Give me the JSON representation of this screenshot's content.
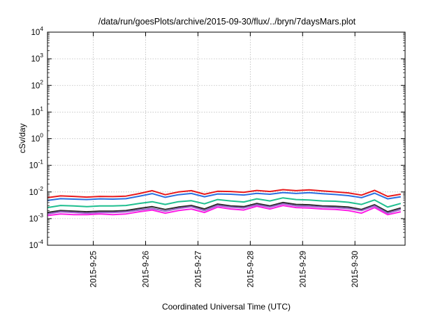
{
  "chart_data": {
    "type": "line",
    "title": "/data/run/goesPlots/archive/2015-09-30/flux/../bryn/7daysMars.plot",
    "xlabel": "Coordinated Universal Time (UTC)",
    "ylabel": "cSv/day",
    "y_scale": "log",
    "ylim": [
      0.0001,
      10000
    ],
    "y_ticks": [
      {
        "base": "10",
        "exp": "-4"
      },
      {
        "base": "10",
        "exp": "-3"
      },
      {
        "base": "10",
        "exp": "-2"
      },
      {
        "base": "10",
        "exp": "-1"
      },
      {
        "base": "10",
        "exp": "0"
      },
      {
        "base": "10",
        "exp": "1"
      },
      {
        "base": "10",
        "exp": "2"
      },
      {
        "base": "10",
        "exp": "3"
      },
      {
        "base": "10",
        "exp": "4"
      }
    ],
    "xlim": [
      "2015-09-24 03:00",
      "2015-09-30 23:00"
    ],
    "x_ticks": [
      "2015-9-25",
      "2015-9-26",
      "2015-9-27",
      "2015-9-28",
      "2015-9-29",
      "2015-9-30"
    ],
    "grid": true,
    "legend": "none",
    "x": [
      "2015-09-24 03:00",
      "2015-09-24 09:00",
      "2015-09-24 15:00",
      "2015-09-24 21:00",
      "2015-09-25 03:00",
      "2015-09-25 09:00",
      "2015-09-25 15:00",
      "2015-09-25 21:00",
      "2015-09-26 03:00",
      "2015-09-26 09:00",
      "2015-09-26 15:00",
      "2015-09-26 21:00",
      "2015-09-27 03:00",
      "2015-09-27 09:00",
      "2015-09-27 15:00",
      "2015-09-27 21:00",
      "2015-09-28 03:00",
      "2015-09-28 09:00",
      "2015-09-28 15:00",
      "2015-09-28 21:00",
      "2015-09-29 03:00",
      "2015-09-29 09:00",
      "2015-09-29 15:00",
      "2015-09-29 21:00",
      "2015-09-30 03:00",
      "2015-09-30 09:00",
      "2015-09-30 15:00",
      "2015-09-30 21:00"
    ],
    "series": [
      {
        "color": "#e8191c",
        "values": [
          0.0061,
          0.0071,
          0.0068,
          0.0064,
          0.0068,
          0.0067,
          0.007,
          0.0087,
          0.0112,
          0.0079,
          0.01,
          0.0112,
          0.0082,
          0.0106,
          0.0104,
          0.0097,
          0.0114,
          0.0104,
          0.0122,
          0.0112,
          0.012,
          0.011,
          0.0101,
          0.0092,
          0.0076,
          0.0115,
          0.0068,
          0.0082
        ]
      },
      {
        "color": "#2b6fe0",
        "values": [
          0.0048,
          0.0056,
          0.0054,
          0.0052,
          0.0055,
          0.0054,
          0.0056,
          0.0069,
          0.0087,
          0.0063,
          0.0079,
          0.0088,
          0.0066,
          0.0084,
          0.0082,
          0.0077,
          0.0089,
          0.0082,
          0.0095,
          0.0088,
          0.0094,
          0.0086,
          0.008,
          0.0073,
          0.0061,
          0.009,
          0.0055,
          0.0066
        ]
      },
      {
        "color": "#1fbf8f",
        "values": [
          0.0026,
          0.0031,
          0.003,
          0.0028,
          0.003,
          0.003,
          0.0031,
          0.0037,
          0.0043,
          0.0034,
          0.0043,
          0.0047,
          0.0036,
          0.0052,
          0.0046,
          0.0042,
          0.0055,
          0.0046,
          0.006,
          0.0052,
          0.005,
          0.0046,
          0.0045,
          0.0041,
          0.0034,
          0.005,
          0.0027,
          0.0037
        ]
      },
      {
        "color": "#2b2b2b",
        "values": [
          0.0017,
          0.002,
          0.0019,
          0.0018,
          0.0019,
          0.0019,
          0.002,
          0.0024,
          0.0028,
          0.0022,
          0.0027,
          0.0031,
          0.0023,
          0.0035,
          0.003,
          0.0028,
          0.0037,
          0.003,
          0.004,
          0.0034,
          0.0033,
          0.003,
          0.0029,
          0.0027,
          0.0022,
          0.0033,
          0.0018,
          0.0025
        ]
      },
      {
        "color": "#9a63c9",
        "values": [
          0.0015,
          0.0018,
          0.0017,
          0.0016,
          0.0017,
          0.0017,
          0.0018,
          0.0021,
          0.0024,
          0.0019,
          0.0024,
          0.0028,
          0.002,
          0.0031,
          0.0027,
          0.0025,
          0.0033,
          0.0027,
          0.0036,
          0.003,
          0.0029,
          0.0027,
          0.0026,
          0.0024,
          0.002,
          0.003,
          0.0016,
          0.0022
        ]
      },
      {
        "color": "#ff1de6",
        "values": [
          0.0013,
          0.0015,
          0.0014,
          0.0014,
          0.0015,
          0.0014,
          0.0015,
          0.0018,
          0.0021,
          0.0016,
          0.002,
          0.0023,
          0.0017,
          0.0027,
          0.0023,
          0.0021,
          0.0029,
          0.0023,
          0.0031,
          0.0026,
          0.0025,
          0.0023,
          0.0022,
          0.002,
          0.0016,
          0.0026,
          0.0014,
          0.0018
        ]
      }
    ]
  }
}
